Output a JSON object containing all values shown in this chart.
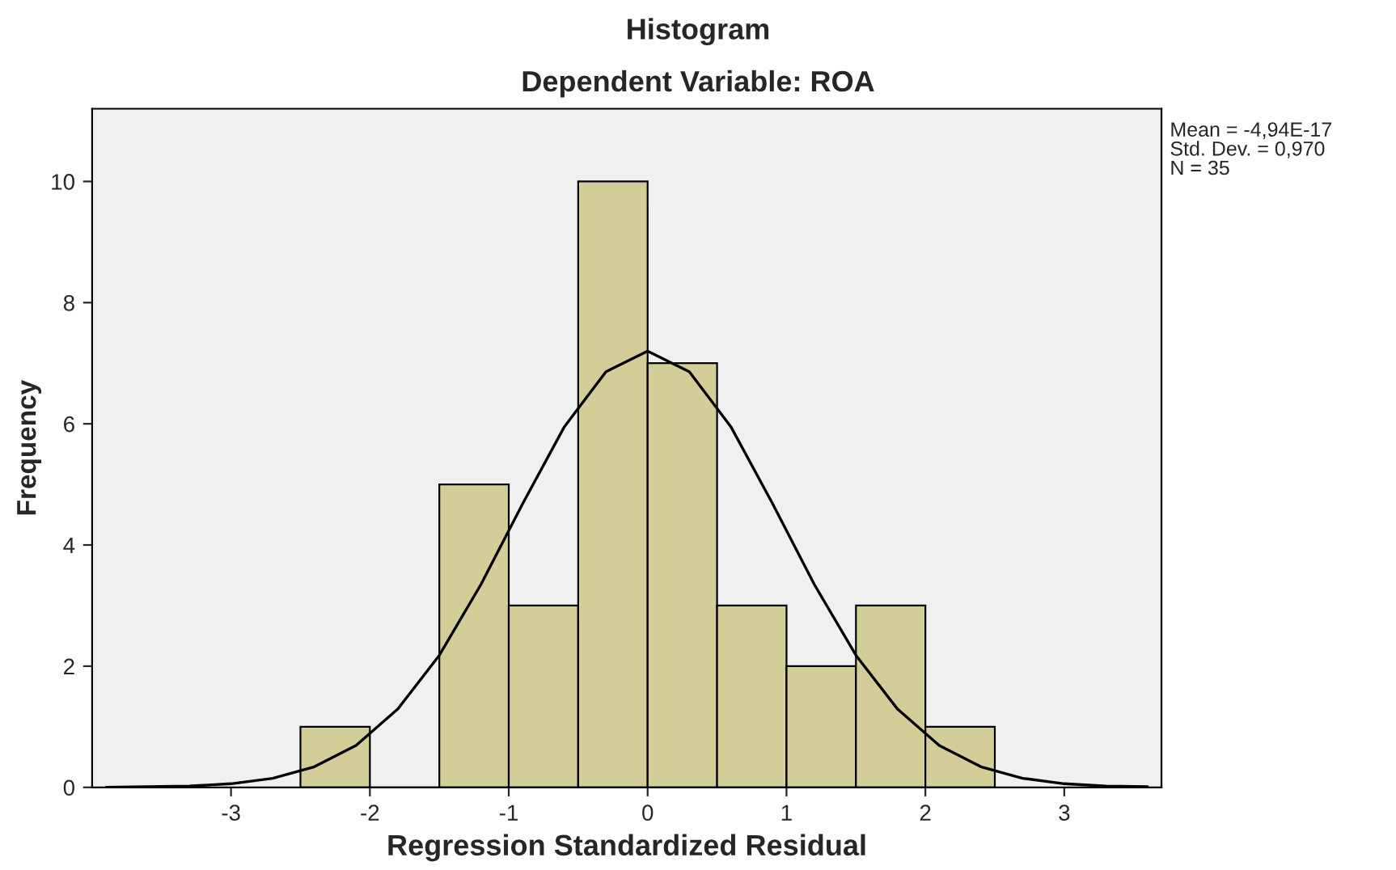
{
  "chart_data": {
    "type": "histogram",
    "title": "Histogram",
    "subtitle": "Dependent Variable: ROA",
    "xlabel": "Regression Standardized Residual",
    "ylabel": "Frequency",
    "bins": [
      -2.5,
      -2.0,
      -1.5,
      -1.0,
      -0.5,
      0.0,
      0.5,
      1.0,
      1.5,
      2.0,
      2.5
    ],
    "values": [
      1,
      0,
      5,
      3,
      10,
      7,
      3,
      2,
      3,
      1
    ],
    "color": "#d3ce97",
    "series": [
      {
        "type": "line",
        "color": "#000000",
        "x": [
          -3.9,
          -3.6,
          -3.3,
          -3.0,
          -2.7,
          -2.4,
          -2.1,
          -1.8,
          -1.5,
          -1.2,
          -0.9,
          -0.6,
          -0.3,
          0.0,
          0.3,
          0.6,
          0.9,
          1.2,
          1.5,
          1.8,
          2.1,
          2.4,
          2.7,
          3.0,
          3.3,
          3.6
        ],
        "values": [
          0.0,
          0.01,
          0.02,
          0.06,
          0.15,
          0.34,
          0.69,
          1.29,
          2.18,
          3.35,
          4.68,
          5.95,
          6.86,
          7.2,
          6.86,
          5.95,
          4.68,
          3.35,
          2.18,
          1.29,
          0.69,
          0.34,
          0.15,
          0.06,
          0.02,
          0.01
        ]
      }
    ],
    "xlim": [
      -4.0,
      3.7
    ],
    "xticks": [
      -3,
      -2,
      -1,
      0,
      1,
      2,
      3
    ],
    "ylim": [
      0,
      11.2
    ],
    "yticks": [
      0,
      2,
      4,
      6,
      8,
      10
    ],
    "grid": false,
    "annotations": [
      "Mean = -4,94E-17",
      "Std. Dev. = 0,970",
      "N = 35"
    ]
  }
}
